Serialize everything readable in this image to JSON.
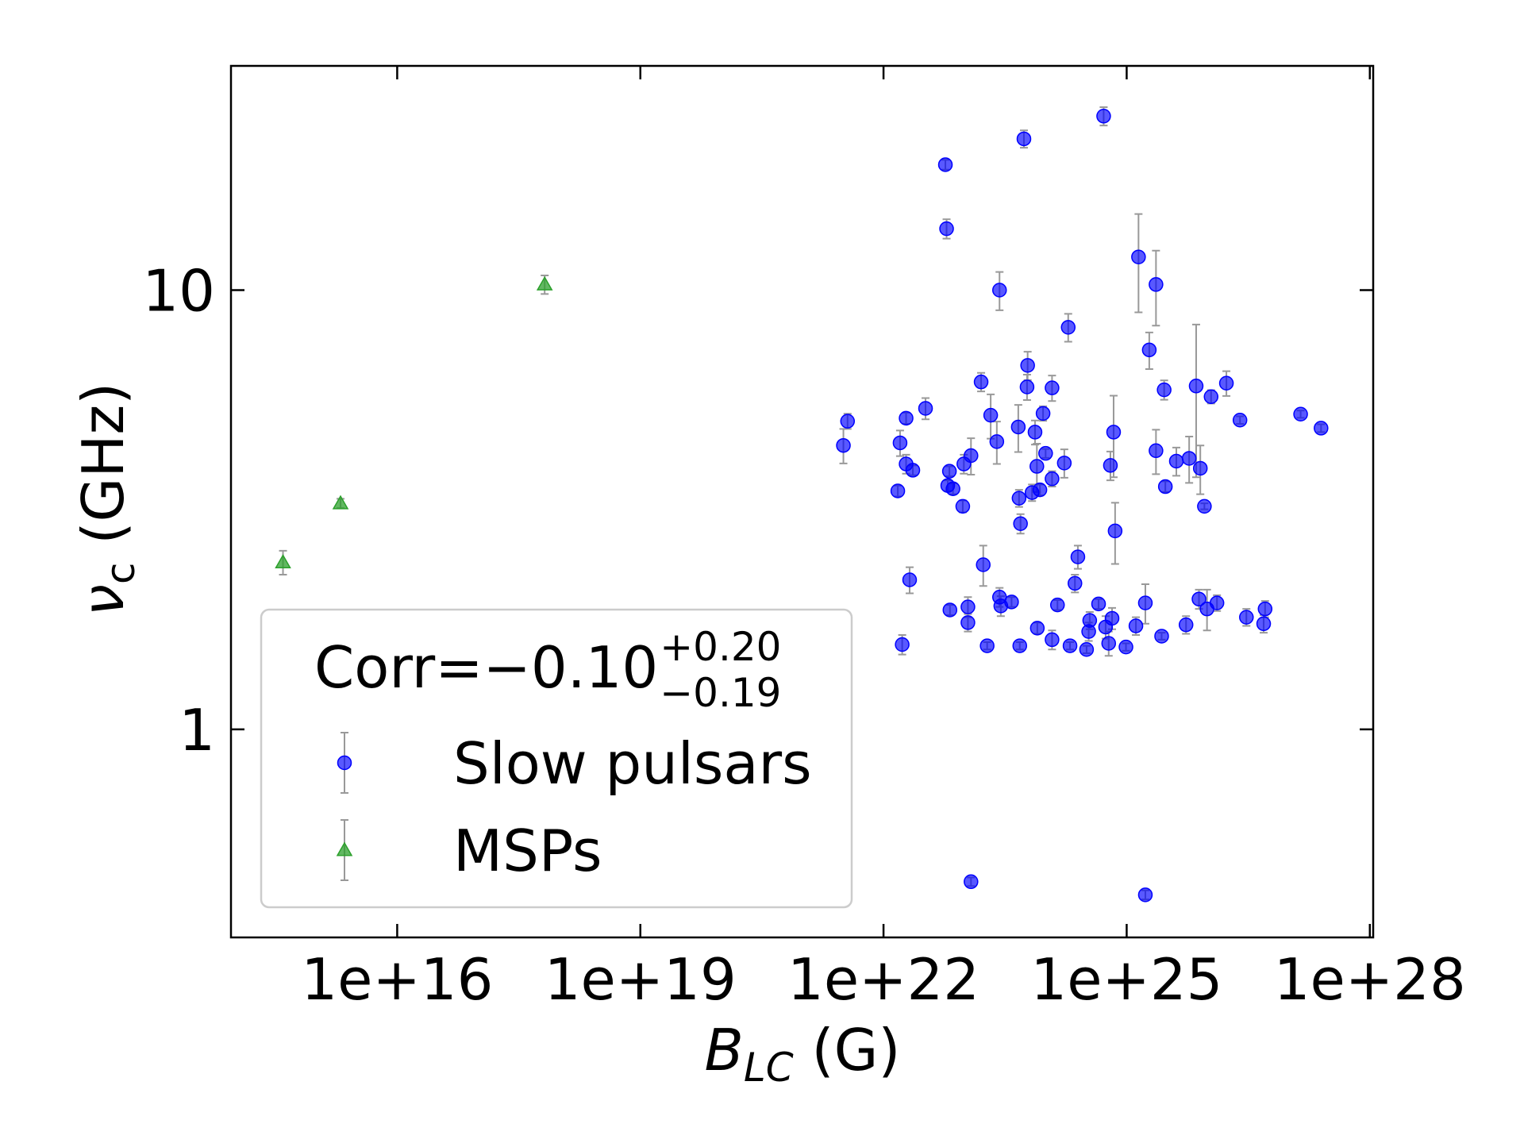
{
  "chart_data": {
    "type": "scatter",
    "xlabel": {
      "symbol": "B",
      "subscript": "LC",
      "unit": "(G)"
    },
    "ylabel": {
      "symbol": "ν",
      "subscript": "c",
      "unit": "(GHz)"
    },
    "xscale": "log",
    "yscale": "log",
    "xlim": [
      89000000000000.0,
      1.1e+28
    ],
    "ylim": [
      0.336,
      32.4
    ],
    "xticks": [
      {
        "value": 1e+16,
        "label": "1e+16"
      },
      {
        "value": 1e+19,
        "label": "1e+19"
      },
      {
        "value": 1e+22,
        "label": "1e+22"
      },
      {
        "value": 1e+25,
        "label": "1e+25"
      },
      {
        "value": 1e+28,
        "label": "1e+28"
      }
    ],
    "yticks": [
      1,
      10
    ],
    "grid": false,
    "legend": {
      "corner": "lower left",
      "title": {
        "main": "Corr=−0.10",
        "sup": "+0.20",
        "sub": "−0.19"
      }
    },
    "series": [
      {
        "name": "Slow pulsars",
        "color": "#0000ff",
        "marker": "circle",
        "x": [
          3.2e+21,
          3.6e+21,
          1.5e+22,
          1.6e+22,
          1.7e+22,
          1.9e+22,
          1.9e+22,
          2.1e+22,
          2.3e+22,
          3.3e+22,
          5.8e+22,
          6e+22,
          6.2e+22,
          6.5e+22,
          6.6e+22,
          7.2e+22,
          9.5e+22,
          9.8e+22,
          1.1e+23,
          1.1e+23,
          1.2e+23,
          1.2e+23,
          1.6e+23,
          1.7e+23,
          1.9e+23,
          2.1e+23,
          2.5e+23,
          2.7e+23,
          2.7e+23,
          2.8e+23,
          3.8e+23,
          4.6e+23,
          4.7e+23,
          4.8e+23,
          4.9e+23,
          5.4e+23,
          5.9e+23,
          6e+23,
          6.8e+23,
          7.4e+23,
          7.8e+23,
          7.9e+23,
          8.5e+23,
          9.3e+23,
          1e+24,
          1.2e+24,
          1.2e+24,
          1.2e+24,
          1.4e+24,
          1.7e+24,
          1.9e+24,
          2e+24,
          2.3e+24,
          2.5e+24,
          3.2e+24,
          3.4e+24,
          3.5e+24,
          4.5e+24,
          5.2e+24,
          5.5e+24,
          6e+24,
          6.3e+24,
          6.6e+24,
          6.9e+24,
          7.2e+24,
          9.8e+24,
          1.3e+25,
          1.4e+25,
          1.7e+25,
          1.7e+25,
          1.9e+25,
          2.3e+25,
          2.3e+25,
          2.7e+25,
          2.9e+25,
          3e+25,
          4.1e+25,
          5.4e+25,
          5.9e+25,
          7.2e+25,
          7.8e+25,
          8.1e+25,
          9.1e+25,
          9.8e+25,
          1.1e+26,
          1.3e+26,
          1.7e+26,
          2.5e+26,
          3e+26,
          4.9e+26,
          5.1e+26,
          1.4e+27,
          2.5e+27
        ],
        "values": [
          4.43,
          5.03,
          3.49,
          4.49,
          1.56,
          4.02,
          5.11,
          2.19,
          3.89,
          5.38,
          19.3,
          13.8,
          3.59,
          3.87,
          1.87,
          3.53,
          3.22,
          4.02,
          1.9,
          1.75,
          0.45,
          4.2,
          6.18,
          2.37,
          1.55,
          5.19,
          4.52,
          10.0,
          2.0,
          1.91,
          1.95,
          4.88,
          3.36,
          1.55,
          2.94,
          22.1,
          6.02,
          6.74,
          3.46,
          4.75,
          3.97,
          1.7,
          3.51,
          5.24,
          4.25,
          1.6,
          3.72,
          5.99,
          1.92,
          4.04,
          8.23,
          1.55,
          2.15,
          2.47,
          1.52,
          1.67,
          1.77,
          1.93,
          24.9,
          1.71,
          1.57,
          3.99,
          1.79,
          4.75,
          2.83,
          1.54,
          1.72,
          11.9,
          0.42,
          1.94,
          7.31,
          10.3,
          4.31,
          1.63,
          5.93,
          3.57,
          4.08,
          1.73,
          4.14,
          6.05,
          1.98,
          3.93,
          3.22,
          1.88,
          5.72,
          1.94,
          6.14,
          5.06,
          1.8,
          1.74,
          1.88,
          5.22,
          4.85
        ],
        "yerr": [
          0.4,
          0.2,
          0.1,
          0.3,
          0.08,
          0.2,
          0.15,
          0.15,
          0.1,
          0.3,
          0.5,
          0.7,
          0.1,
          0.1,
          0.05,
          0.1,
          0.1,
          0.2,
          0.1,
          0.08,
          0.01,
          0.4,
          0.3,
          0.25,
          0.03,
          0.6,
          0.5,
          1.0,
          0.1,
          0.1,
          0.05,
          0.6,
          0.15,
          0.03,
          0.15,
          1.0,
          0.4,
          0.5,
          0.15,
          0.3,
          0.5,
          0.05,
          0.1,
          0.2,
          0.1,
          0.08,
          0.15,
          0.4,
          0.05,
          0.3,
          0.6,
          0.03,
          0.1,
          0.15,
          0.03,
          0.08,
          0.08,
          0.05,
          1.2,
          0.1,
          0.1,
          0.3,
          0.1,
          1.0,
          0.45,
          0.03,
          0.08,
          3.0,
          0.01,
          0.2,
          0.7,
          2.0,
          0.5,
          0.03,
          0.3,
          0.1,
          0.3,
          0.08,
          0.5,
          2.3,
          0.1,
          0.5,
          0.05,
          0.2,
          0.2,
          0.08,
          0.4,
          0.1,
          0.08,
          0.08,
          0.08,
          0.1,
          0.1
        ]
      },
      {
        "name": "MSPs",
        "color": "#2ca02c",
        "marker": "triangle",
        "x": [
          390000000000000.0,
          2000000000000000.0,
          6.6e+17
        ],
        "values": [
          2.4,
          3.27,
          10.3
        ],
        "yerr": [
          0.15,
          0.08,
          0.5
        ]
      }
    ]
  }
}
